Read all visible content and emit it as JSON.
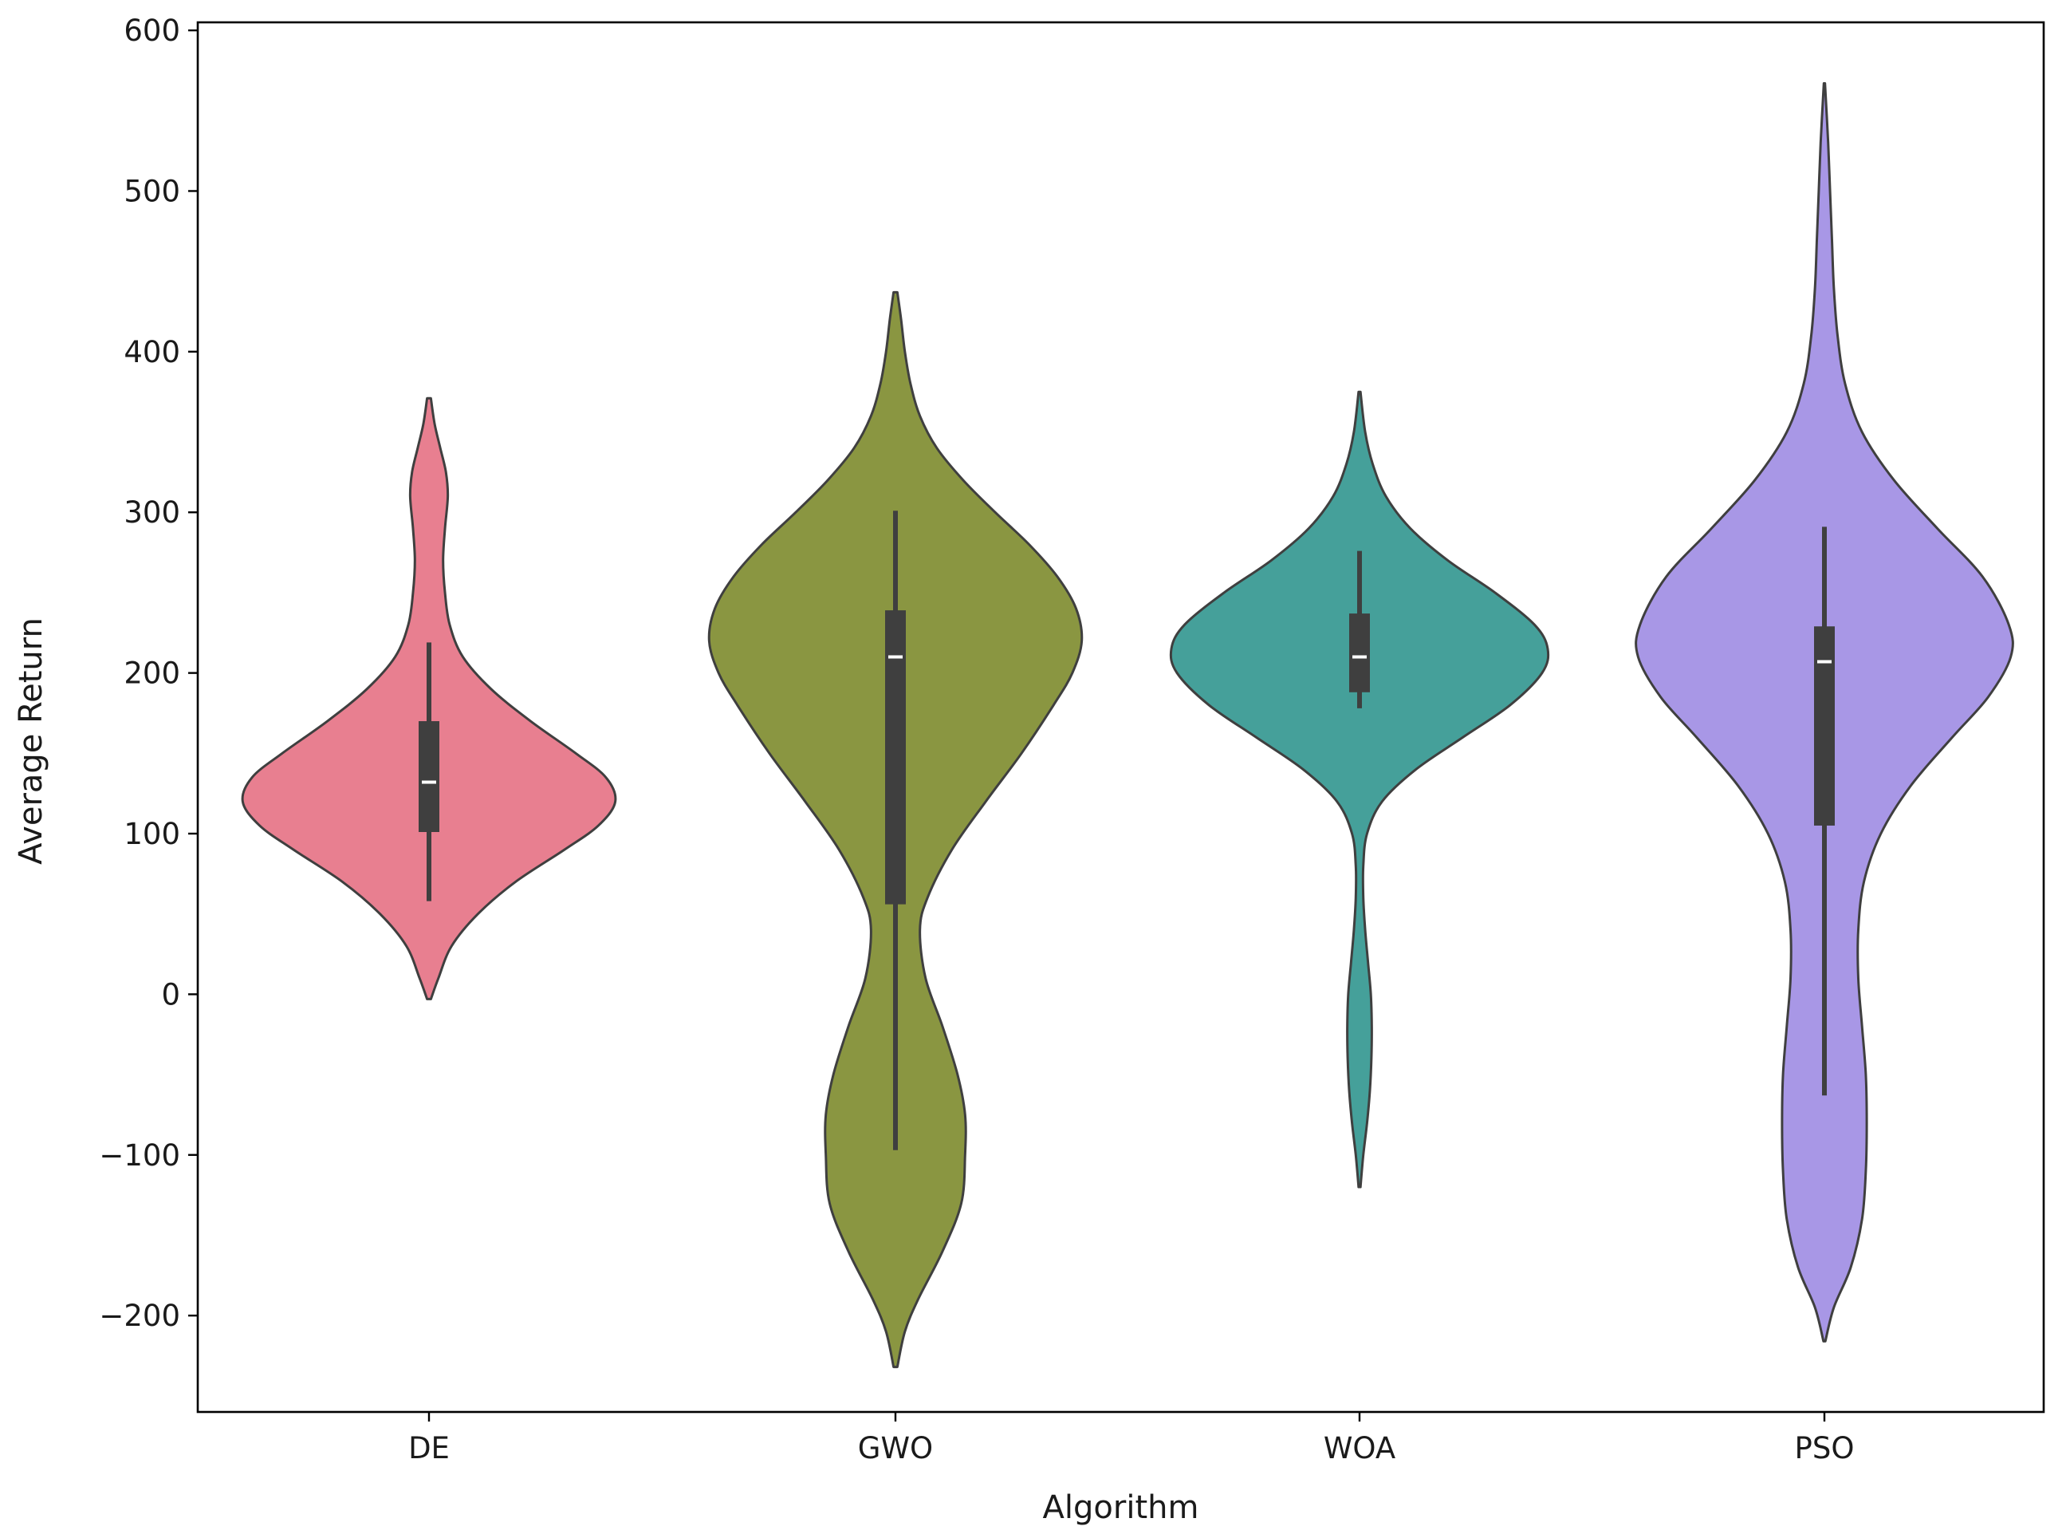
{
  "chart_data": {
    "type": "violin",
    "title": "",
    "xlabel": "Algorithm",
    "ylabel": "Average Return",
    "ylim": [
      -260,
      605
    ],
    "yticks": [
      -200,
      -100,
      0,
      100,
      200,
      300,
      400,
      500,
      600
    ],
    "ytick_labels": [
      "−200",
      "−100",
      "0",
      "100",
      "200",
      "300",
      "400",
      "500",
      "600"
    ],
    "categories": [
      "DE",
      "GWO",
      "WOA",
      "PSO"
    ],
    "grid": false,
    "legend": "none",
    "series": [
      {
        "category": "DE",
        "color": "#e87f90",
        "range": [
          -3,
          371
        ],
        "whisker": [
          58,
          219
        ],
        "q1": 101,
        "median": 132,
        "q3": 170,
        "density": [
          [
            -3,
            0.01
          ],
          [
            10,
            0.05
          ],
          [
            30,
            0.12
          ],
          [
            50,
            0.26
          ],
          [
            70,
            0.46
          ],
          [
            90,
            0.72
          ],
          [
            105,
            0.9
          ],
          [
            120,
            0.99
          ],
          [
            135,
            0.94
          ],
          [
            150,
            0.78
          ],
          [
            170,
            0.54
          ],
          [
            190,
            0.33
          ],
          [
            210,
            0.18
          ],
          [
            230,
            0.11
          ],
          [
            250,
            0.085
          ],
          [
            270,
            0.075
          ],
          [
            290,
            0.085
          ],
          [
            310,
            0.1
          ],
          [
            325,
            0.09
          ],
          [
            340,
            0.06
          ],
          [
            355,
            0.03
          ],
          [
            371,
            0.01
          ]
        ]
      },
      {
        "category": "GWO",
        "color": "#8a9641",
        "range": [
          -232,
          437
        ],
        "whisker": [
          -97,
          301
        ],
        "q1": 56,
        "median": 210,
        "q3": 239,
        "density": [
          [
            -232,
            0.01
          ],
          [
            -210,
            0.05
          ],
          [
            -190,
            0.12
          ],
          [
            -160,
            0.25
          ],
          [
            -130,
            0.35
          ],
          [
            -100,
            0.37
          ],
          [
            -75,
            0.37
          ],
          [
            -50,
            0.33
          ],
          [
            -20,
            0.25
          ],
          [
            10,
            0.16
          ],
          [
            40,
            0.13
          ],
          [
            60,
            0.17
          ],
          [
            90,
            0.3
          ],
          [
            120,
            0.48
          ],
          [
            150,
            0.67
          ],
          [
            180,
            0.84
          ],
          [
            200,
            0.94
          ],
          [
            220,
            0.99
          ],
          [
            240,
            0.96
          ],
          [
            260,
            0.86
          ],
          [
            280,
            0.71
          ],
          [
            300,
            0.53
          ],
          [
            320,
            0.36
          ],
          [
            340,
            0.22
          ],
          [
            360,
            0.13
          ],
          [
            380,
            0.08
          ],
          [
            400,
            0.05
          ],
          [
            420,
            0.03
          ],
          [
            437,
            0.01
          ]
        ]
      },
      {
        "category": "WOA",
        "color": "#45a09a",
        "range": [
          -120,
          375
        ],
        "whisker": [
          178,
          276
        ],
        "q1": 188,
        "median": 210,
        "q3": 237,
        "density": [
          [
            -120,
            0.005
          ],
          [
            -100,
            0.02
          ],
          [
            -80,
            0.04
          ],
          [
            -60,
            0.055
          ],
          [
            -40,
            0.063
          ],
          [
            -20,
            0.065
          ],
          [
            0,
            0.06
          ],
          [
            20,
            0.045
          ],
          [
            40,
            0.03
          ],
          [
            60,
            0.02
          ],
          [
            80,
            0.02
          ],
          [
            100,
            0.04
          ],
          [
            120,
            0.12
          ],
          [
            140,
            0.3
          ],
          [
            160,
            0.55
          ],
          [
            180,
            0.8
          ],
          [
            200,
            0.97
          ],
          [
            215,
            1.0
          ],
          [
            230,
            0.93
          ],
          [
            250,
            0.72
          ],
          [
            270,
            0.47
          ],
          [
            290,
            0.27
          ],
          [
            310,
            0.14
          ],
          [
            330,
            0.07
          ],
          [
            350,
            0.03
          ],
          [
            375,
            0.005
          ]
        ]
      },
      {
        "category": "PSO",
        "color": "#a897e6",
        "range": [
          -216,
          567
        ],
        "whisker": [
          -63,
          291
        ],
        "q1": 105,
        "median": 207,
        "q3": 229,
        "density": [
          [
            -216,
            0.005
          ],
          [
            -195,
            0.05
          ],
          [
            -170,
            0.14
          ],
          [
            -140,
            0.2
          ],
          [
            -110,
            0.22
          ],
          [
            -80,
            0.225
          ],
          [
            -50,
            0.22
          ],
          [
            -20,
            0.2
          ],
          [
            10,
            0.18
          ],
          [
            40,
            0.18
          ],
          [
            70,
            0.21
          ],
          [
            100,
            0.3
          ],
          [
            130,
            0.46
          ],
          [
            160,
            0.68
          ],
          [
            185,
            0.87
          ],
          [
            210,
            0.99
          ],
          [
            230,
            0.98
          ],
          [
            260,
            0.84
          ],
          [
            290,
            0.6
          ],
          [
            320,
            0.37
          ],
          [
            350,
            0.2
          ],
          [
            380,
            0.11
          ],
          [
            410,
            0.07
          ],
          [
            440,
            0.05
          ],
          [
            470,
            0.04
          ],
          [
            500,
            0.03
          ],
          [
            530,
            0.02
          ],
          [
            567,
            0.003
          ]
        ]
      }
    ]
  }
}
